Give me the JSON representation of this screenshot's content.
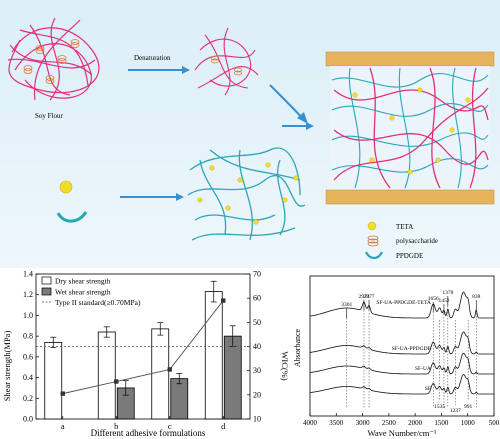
{
  "scheme": {
    "denaturation_label": "Denaturation",
    "soy_flour_label": "Soy Flour",
    "legend": [
      {
        "key": "teta",
        "label": "TETA"
      },
      {
        "key": "polysaccharide",
        "label": "polysaccharide"
      },
      {
        "key": "ppdgde",
        "label": "PPDGDE"
      }
    ],
    "colors": {
      "background_top": "#dbeef7",
      "background_bottom": "#eef7fc",
      "protein_strand": "#e0307a",
      "polysaccharide": "#d87a3a",
      "ppdgde_strand": "#2aa6b8",
      "teta_dot": "#f2dc28",
      "arrow": "#3a8fd0",
      "wood": "#e6b45c"
    }
  },
  "chart_data": [
    {
      "type": "bar",
      "categories": [
        "a",
        "b",
        "c",
        "d"
      ],
      "xlabel": "Different adhesive formulations",
      "ylabel": "Shear strength(MPa)",
      "y2label": "WIC(%)",
      "ylim": [
        0.0,
        1.4
      ],
      "yticks": [
        "0.0",
        "0.2",
        "0.4",
        "0.6",
        "0.8",
        "1.0",
        "1.2",
        "1.4"
      ],
      "y2lim": [
        10,
        70
      ],
      "y2ticks": [
        "10",
        "20",
        "30",
        "40",
        "50",
        "60",
        "70"
      ],
      "series": [
        {
          "name": "Dry shear strength",
          "values": [
            0.74,
            0.84,
            0.87,
            1.23
          ],
          "errors": [
            0.05,
            0.05,
            0.06,
            0.1
          ],
          "color": "#ffffff"
        },
        {
          "name": "Wet shear strength",
          "values": [
            0.0,
            0.3,
            0.39,
            0.8
          ],
          "errors": [
            0.0,
            0.07,
            0.05,
            0.1
          ],
          "color": "#7a7a7a"
        }
      ],
      "line_series": {
        "name": "WIC",
        "values": [
          20.5,
          25.5,
          30.5,
          59
        ]
      },
      "reference": {
        "label": "Type II standard(≥0.70MPa)",
        "value": 0.7
      },
      "legend_position": "top-left"
    },
    {
      "type": "line",
      "xlabel": "Wave Number/cm⁻¹",
      "ylabel": "Absorbance",
      "xlim": [
        4000,
        500
      ],
      "xticks": [
        "4000",
        "3500",
        "3000",
        "2500",
        "2000",
        "1500",
        "1000",
        "500"
      ],
      "xtick_values": [
        4000,
        3500,
        3000,
        2500,
        2000,
        1500,
        1000,
        500
      ],
      "series": [
        {
          "name": "SF-UA-PPDGDE-TETA"
        },
        {
          "name": "SF-UA-PPDGDE"
        },
        {
          "name": "SF-UA"
        },
        {
          "name": "SF"
        }
      ],
      "annotations": [
        {
          "label": "3301",
          "x": 3301
        },
        {
          "label": "2973",
          "x": 2973
        },
        {
          "label": "2877",
          "x": 2877
        },
        {
          "label": "1656",
          "x": 1656
        },
        {
          "label": "1452",
          "x": 1452
        },
        {
          "label": "1378",
          "x": 1378
        },
        {
          "label": "838",
          "x": 838
        },
        {
          "label": "1535",
          "x": 1535
        },
        {
          "label": "1237",
          "x": 1237
        },
        {
          "label": "991",
          "x": 991
        }
      ]
    }
  ]
}
